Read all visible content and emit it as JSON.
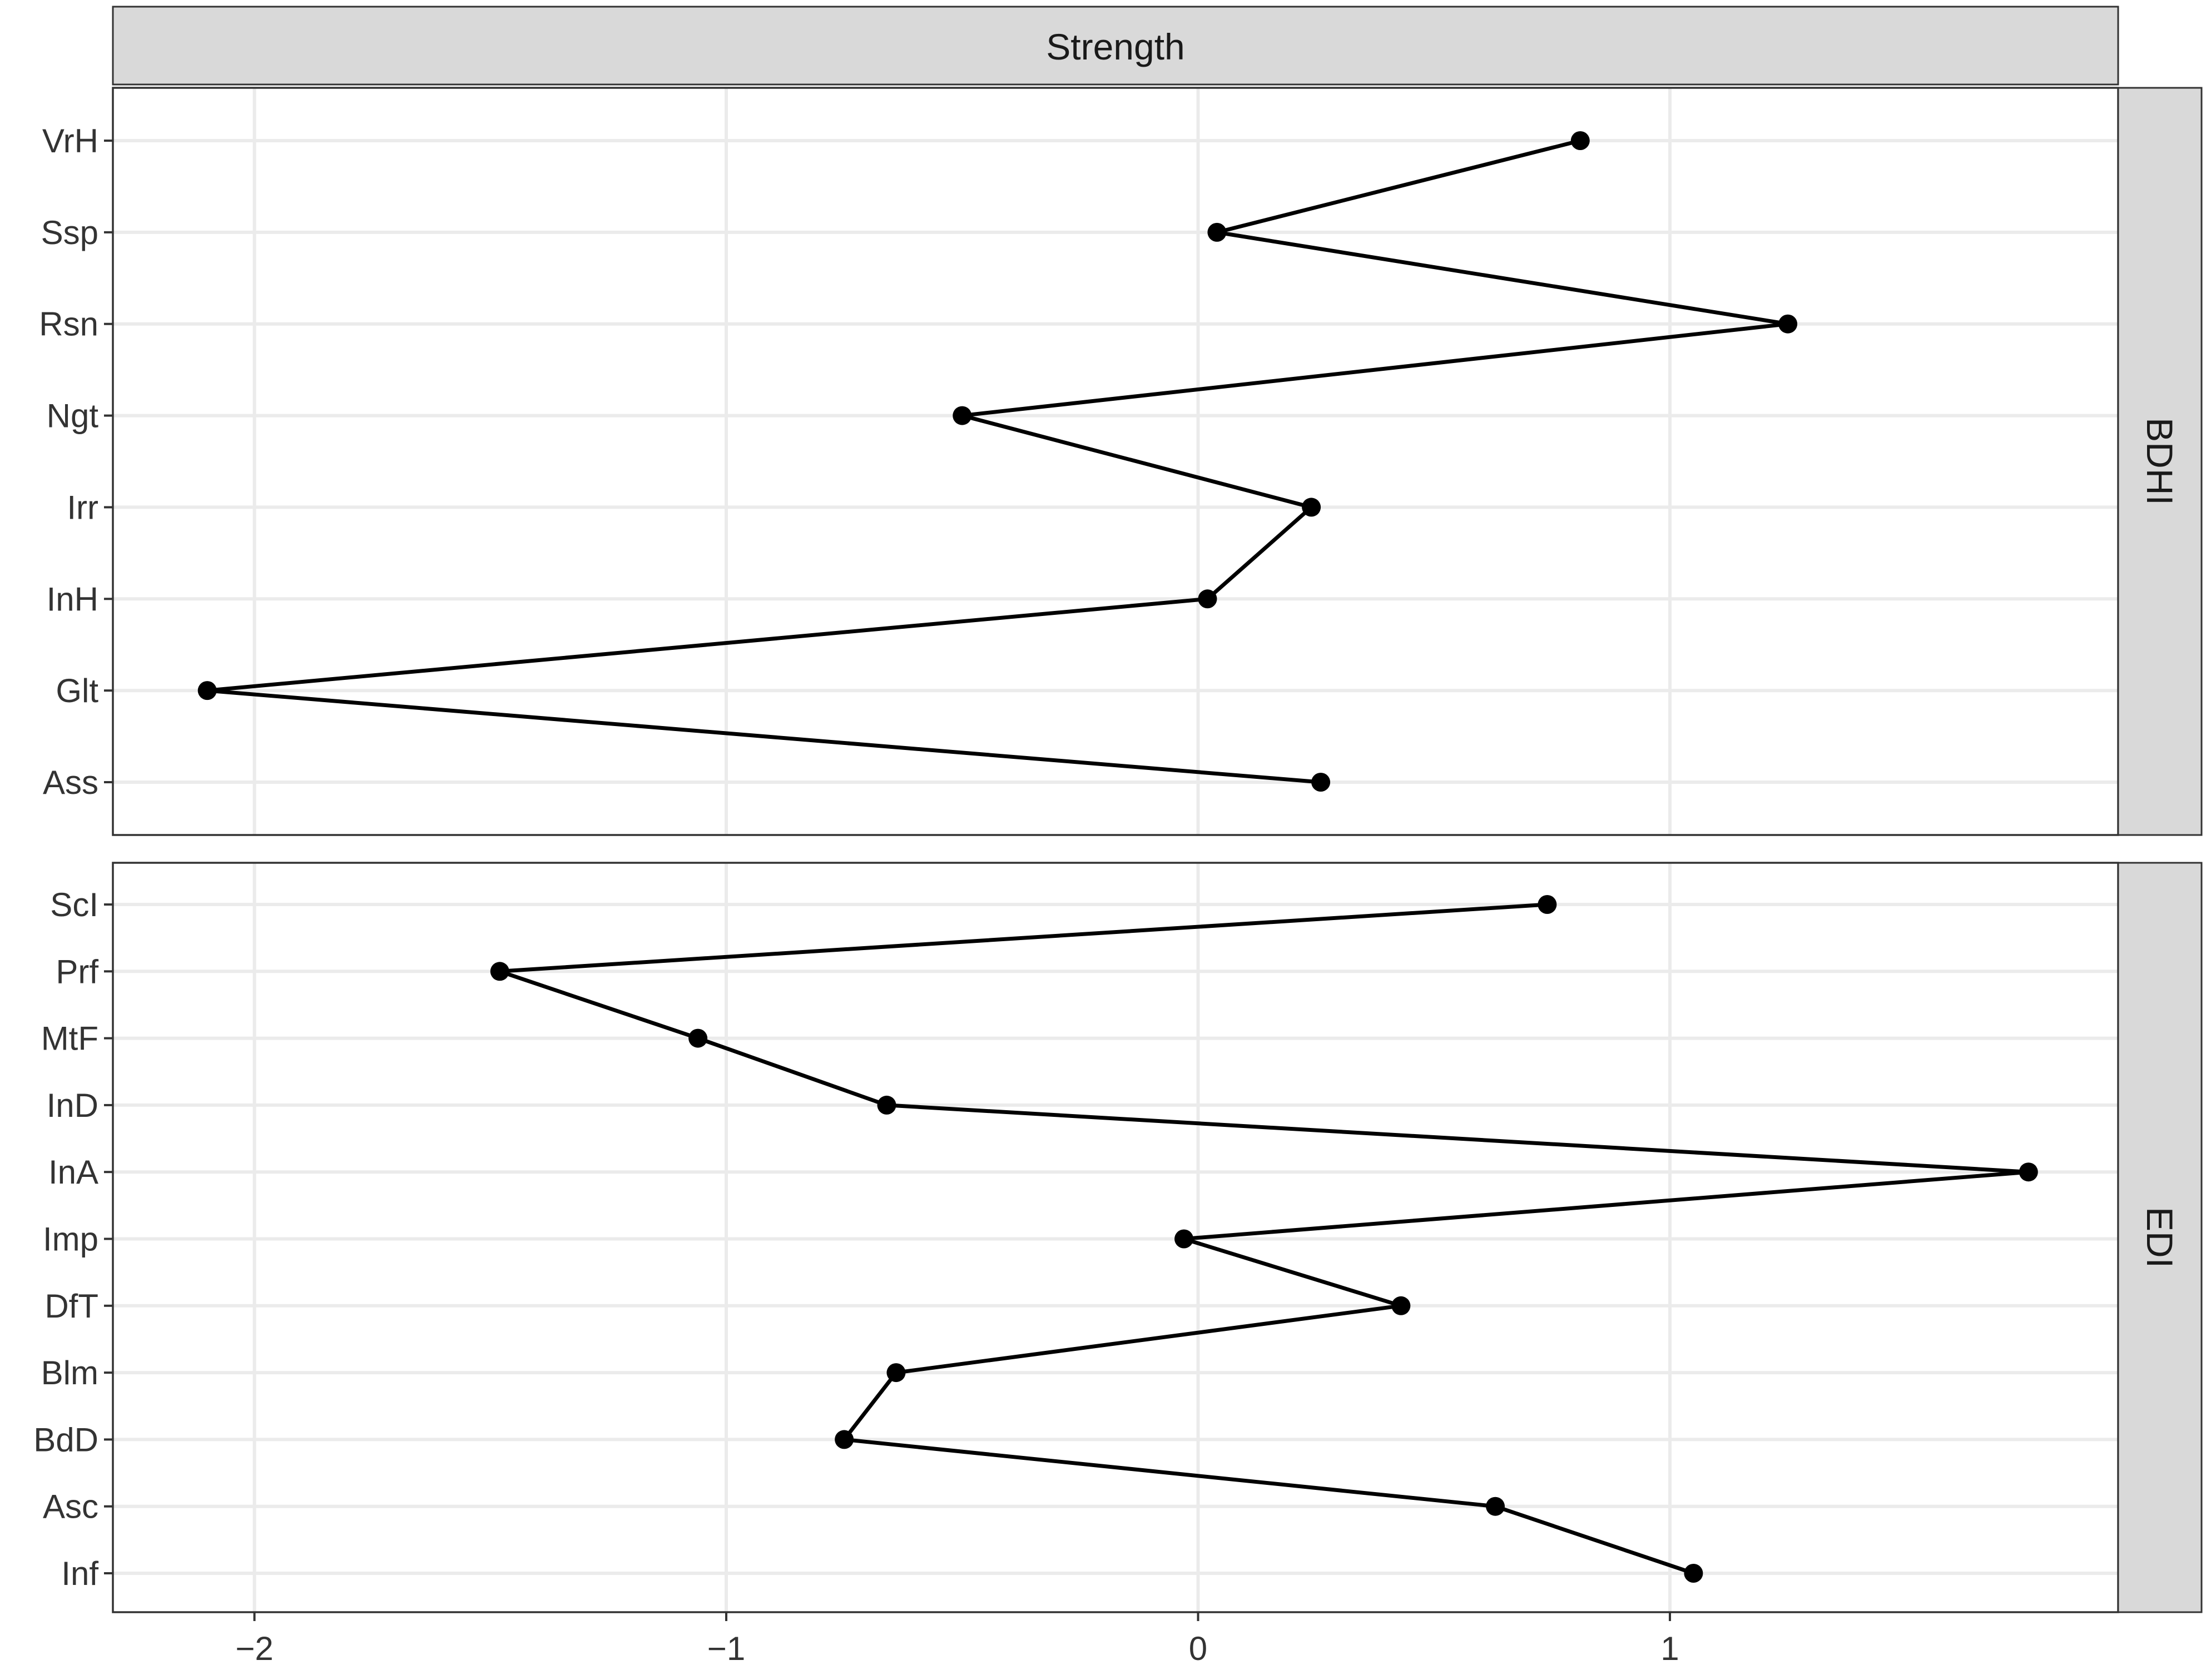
{
  "chart_data": {
    "type": "line",
    "title": "",
    "column_strip": "Strength",
    "xlabel": "",
    "ylabel": "",
    "xlim": [
      -2.3,
      1.95
    ],
    "x_ticks": [
      -2,
      -1,
      0,
      1
    ],
    "x_tick_labels": [
      "−2",
      "−1",
      "0",
      "1"
    ],
    "grid": true,
    "colors": {
      "line": "#000000",
      "point": "#000000",
      "strip": "#d9d9d9",
      "grid": "#ebebeb"
    },
    "panels": [
      {
        "strip": "BDHI",
        "categories": [
          "VrH",
          "Ssp",
          "Rsn",
          "Ngt",
          "Irr",
          "InH",
          "Glt",
          "Ass"
        ],
        "values": [
          0.81,
          0.04,
          1.25,
          -0.5,
          0.24,
          0.02,
          -2.1,
          0.26
        ]
      },
      {
        "strip": "EDI",
        "categories": [
          "ScI",
          "Prf",
          "MtF",
          "InD",
          "InA",
          "Imp",
          "DfT",
          "Blm",
          "BdD",
          "Asc",
          "Inf"
        ],
        "values": [
          0.74,
          -1.48,
          -1.06,
          -0.66,
          1.76,
          -0.03,
          0.43,
          -0.64,
          -0.75,
          0.63,
          1.05
        ]
      }
    ]
  }
}
